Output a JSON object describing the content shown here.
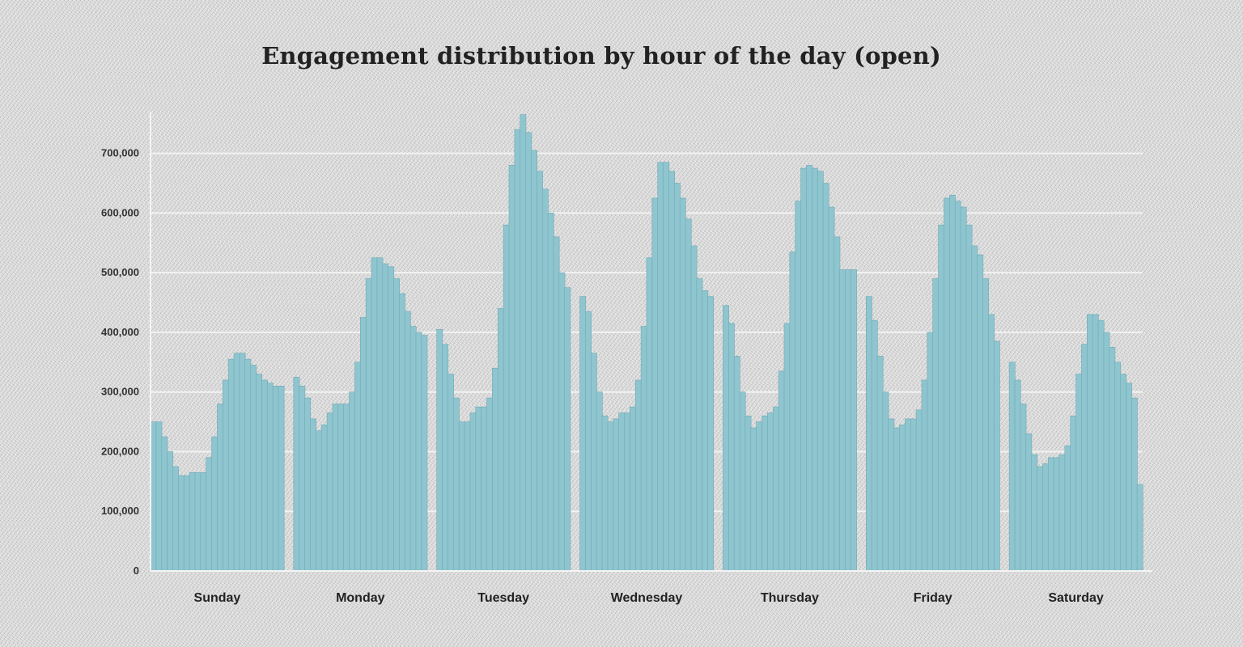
{
  "chart_data": {
    "type": "bar",
    "title": "Engagement distribution by hour of the day (open)",
    "xlabel": "",
    "ylabel": "",
    "ylim": [
      0,
      770000
    ],
    "yticks": [
      0,
      100000,
      200000,
      300000,
      400000,
      500000,
      600000,
      700000
    ],
    "ytick_labels": [
      "0",
      "100,000",
      "200,000",
      "300,000",
      "400,000",
      "500,000",
      "600,000",
      "700,000"
    ],
    "grid": true,
    "legend": "none",
    "bar_color": "#8ec5cf",
    "categories": [
      "Sunday",
      "Monday",
      "Tuesday",
      "Wednesday",
      "Thursday",
      "Friday",
      "Saturday"
    ],
    "hours_per_category": 24,
    "series": [
      {
        "values": [
          [
            250000,
            250000,
            225000,
            200000,
            175000,
            160000,
            160000,
            165000,
            165000,
            165000,
            190000,
            225000,
            280000,
            320000,
            355000,
            365000,
            365000,
            355000,
            345000,
            330000,
            320000,
            315000,
            310000,
            310000
          ],
          [
            325000,
            310000,
            290000,
            255000,
            235000,
            245000,
            265000,
            280000,
            280000,
            280000,
            300000,
            350000,
            425000,
            490000,
            525000,
            525000,
            515000,
            510000,
            490000,
            465000,
            435000,
            410000,
            400000,
            395000
          ],
          [
            405000,
            380000,
            330000,
            290000,
            250000,
            250000,
            265000,
            275000,
            275000,
            290000,
            340000,
            440000,
            580000,
            680000,
            740000,
            765000,
            735000,
            705000,
            670000,
            640000,
            600000,
            560000,
            500000,
            475000
          ],
          [
            460000,
            435000,
            365000,
            300000,
            260000,
            250000,
            255000,
            265000,
            265000,
            275000,
            320000,
            410000,
            525000,
            625000,
            685000,
            685000,
            670000,
            650000,
            625000,
            590000,
            545000,
            490000,
            470000,
            460000
          ],
          [
            445000,
            415000,
            360000,
            300000,
            260000,
            240000,
            250000,
            260000,
            265000,
            275000,
            335000,
            415000,
            535000,
            620000,
            675000,
            680000,
            675000,
            670000,
            650000,
            610000,
            560000,
            505000,
            505000,
            505000
          ],
          [
            460000,
            420000,
            360000,
            300000,
            255000,
            240000,
            245000,
            255000,
            255000,
            270000,
            320000,
            400000,
            490000,
            580000,
            625000,
            630000,
            620000,
            610000,
            580000,
            545000,
            530000,
            490000,
            430000,
            385000
          ],
          [
            350000,
            320000,
            280000,
            230000,
            195000,
            175000,
            180000,
            190000,
            190000,
            195000,
            210000,
            260000,
            330000,
            380000,
            430000,
            430000,
            420000,
            400000,
            375000,
            350000,
            330000,
            315000,
            290000,
            145000
          ]
        ]
      }
    ]
  }
}
